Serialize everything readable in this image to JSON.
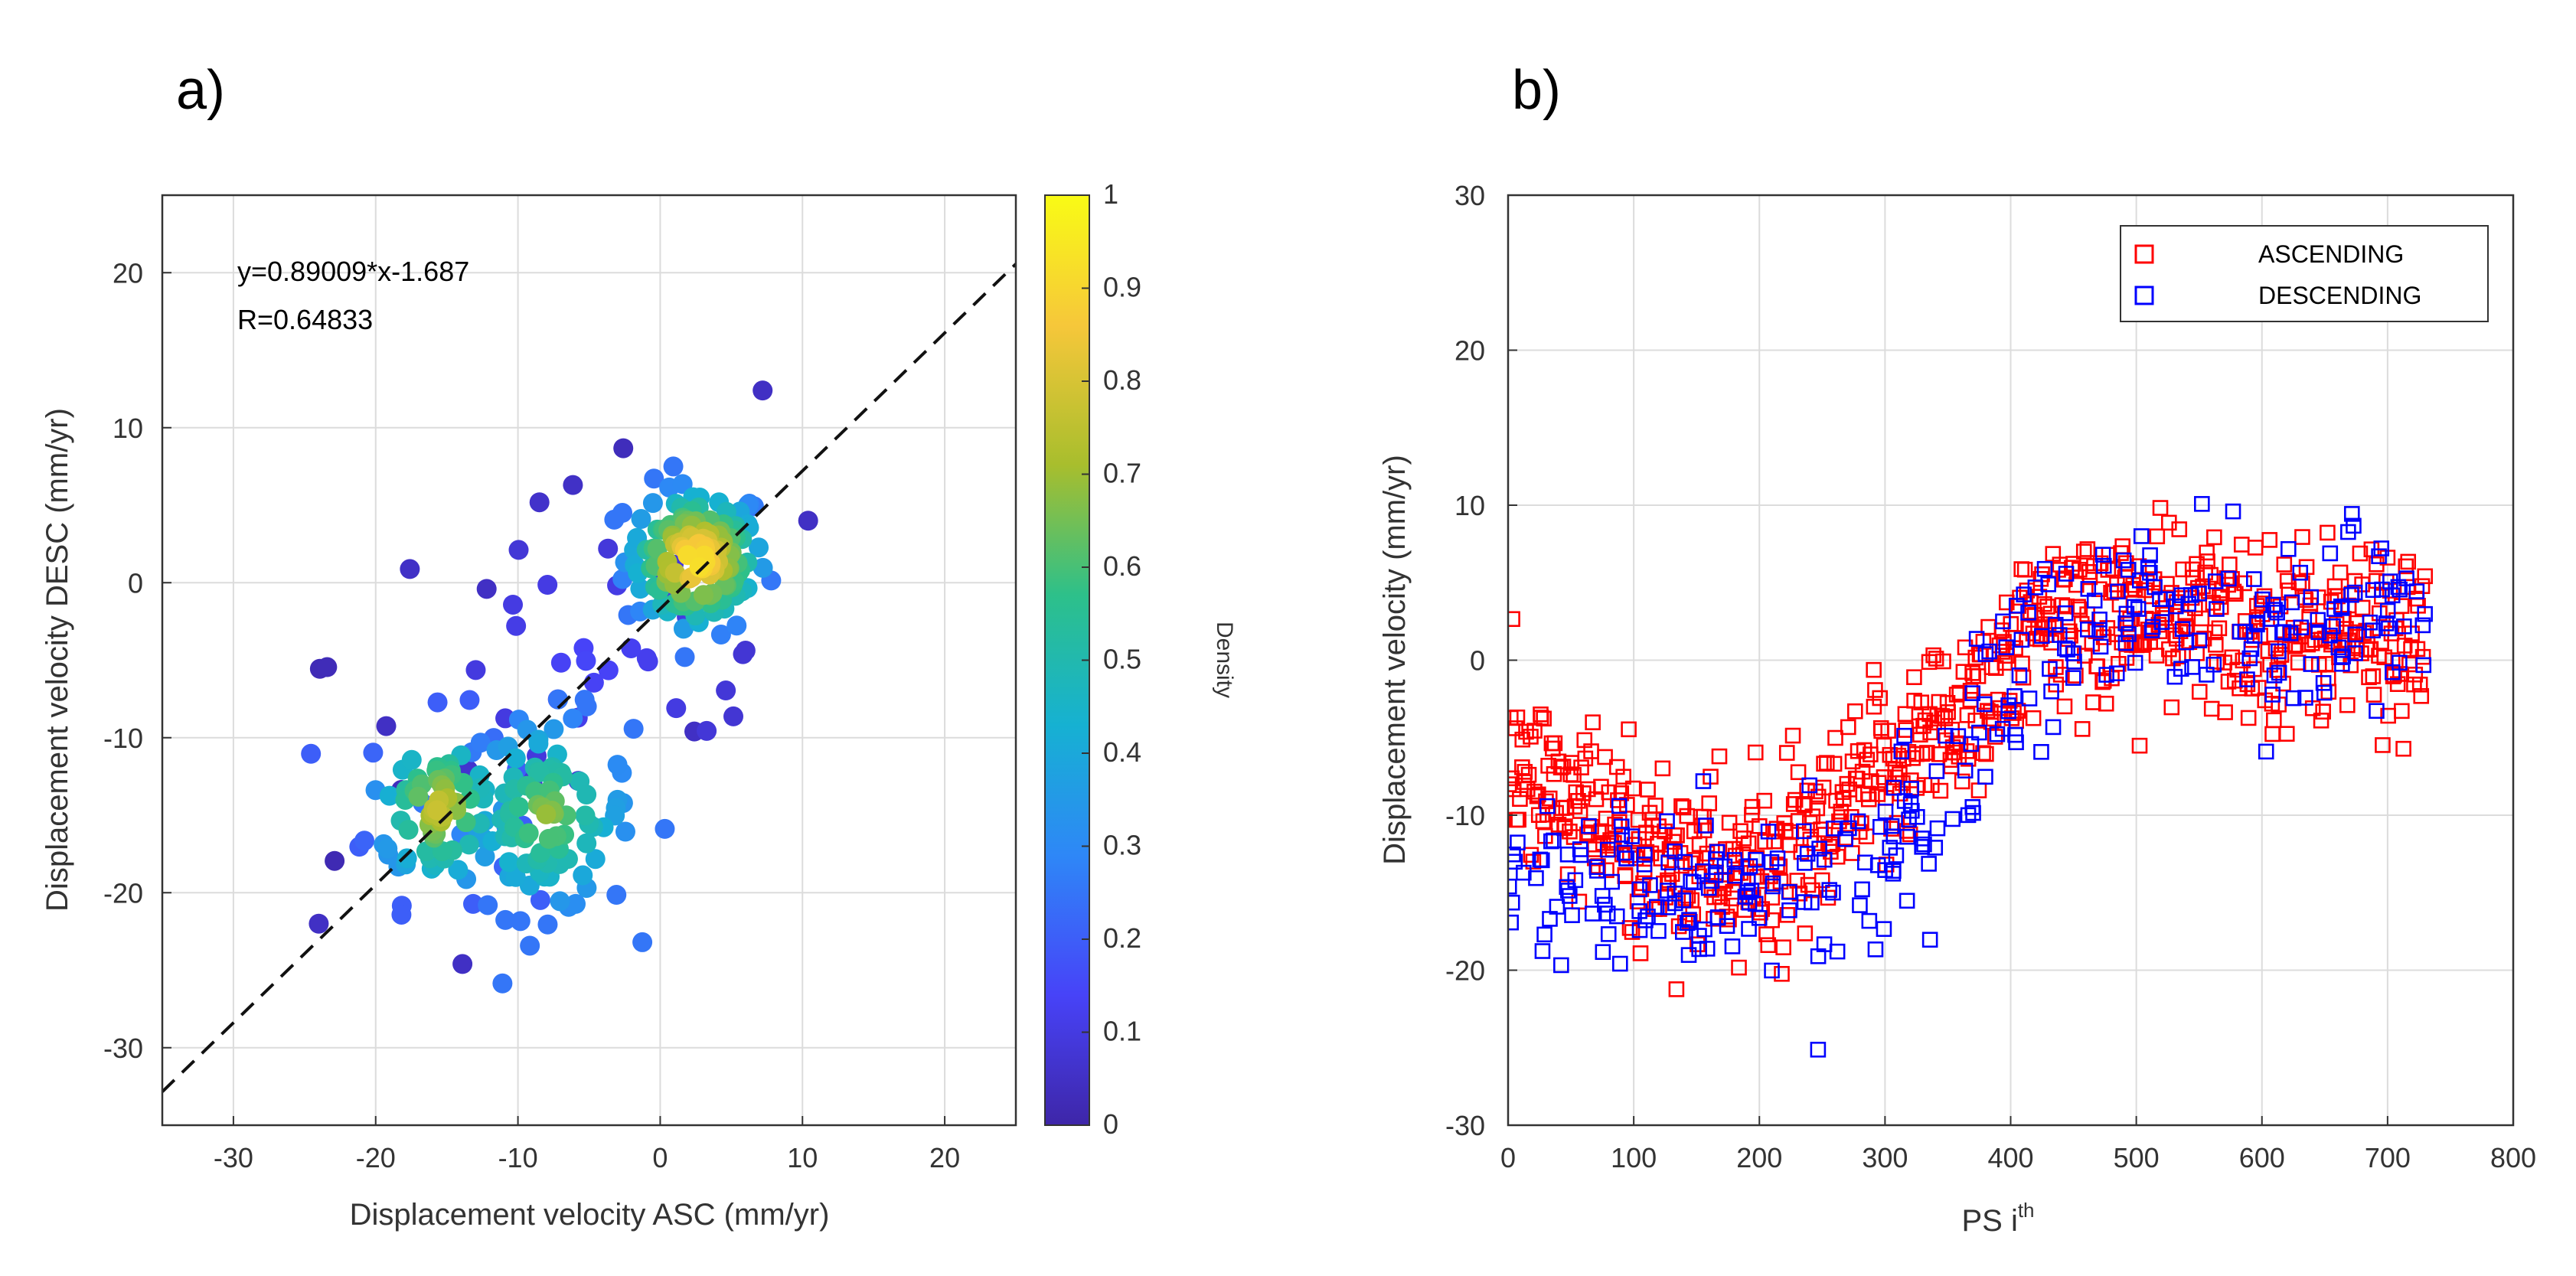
{
  "chart_data": [
    {
      "panel": "a)",
      "type": "scatter",
      "title": "",
      "xlabel": "Displacement velocity ASC (mm/yr)",
      "ylabel": "Displacement velocity DESC (mm/yr)",
      "xlim": [
        -35,
        25
      ],
      "ylim": [
        -35,
        25
      ],
      "xticks": [
        -30,
        -20,
        -10,
        0,
        10,
        20
      ],
      "yticks": [
        -30,
        -20,
        -10,
        0,
        10,
        20
      ],
      "grid": true,
      "annotation_lines": [
        "y=0.89009*x-1.687",
        "R=0.64833"
      ],
      "fit_line": {
        "slope": 0.89009,
        "intercept": -1.687,
        "style": "dashed",
        "color": "#000000"
      },
      "colorbar": {
        "label": "Density",
        "range": [
          0,
          1
        ],
        "ticks": [
          0,
          0.1,
          0.2,
          0.3,
          0.4,
          0.5,
          0.6,
          0.7,
          0.8,
          0.9,
          1
        ],
        "colors": [
          "#3e26a8",
          "#4743f8",
          "#2e87f7",
          "#16b1d2",
          "#2dc08a",
          "#a8be2d",
          "#f6c73a",
          "#f9fb15"
        ]
      },
      "clusters": [
        {
          "name": "cluster-upper-right",
          "cx": 2.5,
          "cy": 1.5,
          "sx": 2.5,
          "sy": 2.4,
          "n": 140,
          "dmin": 0.25,
          "dmax": 1.0
        },
        {
          "name": "cluster-lower-left-a",
          "cx": -15.5,
          "cy": -14.5,
          "sx": 2.6,
          "sy": 3.0,
          "n": 80,
          "dmin": 0.2,
          "dmax": 0.8
        },
        {
          "name": "cluster-lower-left-b",
          "cx": -8,
          "cy": -15,
          "sx": 3.0,
          "sy": 3.2,
          "n": 100,
          "dmin": 0.25,
          "dmax": 0.7
        },
        {
          "name": "sparse-outliers",
          "cx": -5,
          "cy": -5,
          "sx": 9,
          "sy": 7,
          "n": 45,
          "dmin": 0.02,
          "dmax": 0.15
        }
      ],
      "points": [
        {
          "x": 7.2,
          "y": 12.4,
          "d": 0.05
        },
        {
          "x": 10.4,
          "y": 4.0,
          "d": 0.05
        },
        {
          "x": -13.9,
          "y": -24.6,
          "d": 0.05
        },
        {
          "x": 2.4,
          "y": -9.6,
          "d": 0.05
        },
        {
          "x": -24.0,
          "y": -22.0,
          "d": 0.05
        },
        {
          "x": -12.2,
          "y": -0.4,
          "d": 0.05
        }
      ]
    },
    {
      "panel": "b)",
      "type": "scatter",
      "title": "",
      "xlabel_main": "PS i",
      "xlabel_sup": "th",
      "ylabel": "Displacement velocity (mm/yr)",
      "xlim": [
        0,
        800
      ],
      "ylim": [
        -30,
        30
      ],
      "xticks": [
        0,
        100,
        200,
        300,
        400,
        500,
        600,
        700,
        800
      ],
      "yticks": [
        -30,
        -20,
        -10,
        0,
        10,
        20,
        30
      ],
      "grid": true,
      "legend": {
        "position": "top-right"
      },
      "series": [
        {
          "name": "ASCENDING",
          "color": "#ff0000",
          "marker": "square-open",
          "n": 730,
          "trend": [
            [
              0,
              -7
            ],
            [
              100,
              -12
            ],
            [
              200,
              -14
            ],
            [
              250,
              -12
            ],
            [
              300,
              -7
            ],
            [
              350,
              -4
            ],
            [
              400,
              0
            ],
            [
              450,
              3
            ],
            [
              500,
              3
            ],
            [
              600,
              2
            ],
            [
              730,
              1.5
            ]
          ],
          "spread": 3.0
        },
        {
          "name": "DESCENDING",
          "color": "#0000ff",
          "marker": "square-open",
          "n": 330,
          "trend": [
            [
              0,
              -14
            ],
            [
              100,
              -14
            ],
            [
              200,
              -16
            ],
            [
              300,
              -13
            ],
            [
              350,
              -9
            ],
            [
              380,
              -3
            ],
            [
              420,
              0
            ],
            [
              500,
              3
            ],
            [
              600,
              2.5
            ],
            [
              730,
              2.5
            ]
          ],
          "spread": 2.8
        }
      ]
    }
  ]
}
